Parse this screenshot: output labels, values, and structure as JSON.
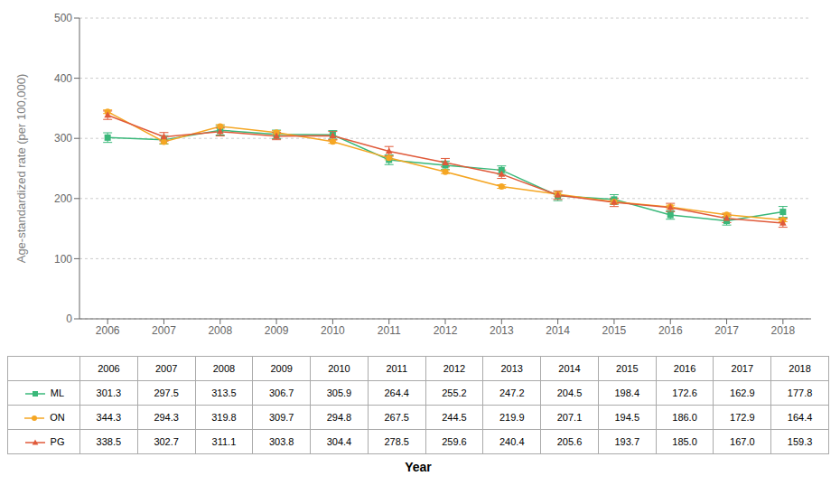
{
  "chart_data": {
    "type": "line",
    "x": [
      2006,
      2007,
      2008,
      2009,
      2010,
      2011,
      2012,
      2013,
      2014,
      2015,
      2016,
      2017,
      2018
    ],
    "xlim": [
      2005.5,
      2018.5
    ],
    "xticks": [
      2006,
      2007,
      2008,
      2009,
      2010,
      2011,
      2012,
      2013,
      2014,
      2015,
      2016,
      2017,
      2018
    ],
    "ylim": [
      0,
      500
    ],
    "yticks": [
      0,
      100,
      200,
      300,
      400,
      500
    ],
    "xlabel": "Year",
    "ylabel": "Age-standardized rate (per 100,000)",
    "grid": true,
    "series": [
      {
        "name": "ML",
        "color": "#3ab87a",
        "marker": "square",
        "values": [
          301.3,
          297.5,
          313.5,
          306.7,
          305.9,
          264.4,
          255.2,
          247.2,
          204.5,
          198.4,
          172.6,
          162.9,
          177.8
        ],
        "errors": [
          8,
          7,
          8,
          7,
          7,
          8,
          7,
          7,
          8,
          8,
          7,
          7,
          9
        ]
      },
      {
        "name": "ON",
        "color": "#f5a623",
        "marker": "circle",
        "values": [
          344.3,
          294.3,
          319.8,
          309.7,
          294.8,
          267.5,
          244.5,
          219.9,
          207.1,
          194.5,
          186.0,
          172.9,
          164.4
        ],
        "value_labels": [
          "344.3",
          "294.3",
          "319.8",
          "309.7",
          "294.8",
          "267.5",
          "244.5",
          "219.9",
          "207.1",
          "194.5",
          "186.0",
          "172.9",
          "164.4"
        ],
        "errors": [
          3,
          3,
          3,
          3,
          3,
          3,
          3,
          3,
          3,
          3,
          3,
          3,
          3
        ]
      },
      {
        "name": "PG",
        "color": "#e05a3a",
        "marker": "triangle",
        "values": [
          338.5,
          302.7,
          311.1,
          303.8,
          304.4,
          278.5,
          259.6,
          240.4,
          205.6,
          193.7,
          185.0,
          167.0,
          159.3
        ],
        "value_labels": [
          "338.5",
          "302.7",
          "311.1",
          "303.8",
          "304.4",
          "278.5",
          "259.6",
          "240.4",
          "205.6",
          "193.7",
          "185.0",
          "167.0",
          "159.3"
        ],
        "errors": [
          7,
          7,
          7,
          6,
          7,
          8,
          7,
          7,
          7,
          7,
          7,
          7,
          7
        ]
      }
    ]
  }
}
